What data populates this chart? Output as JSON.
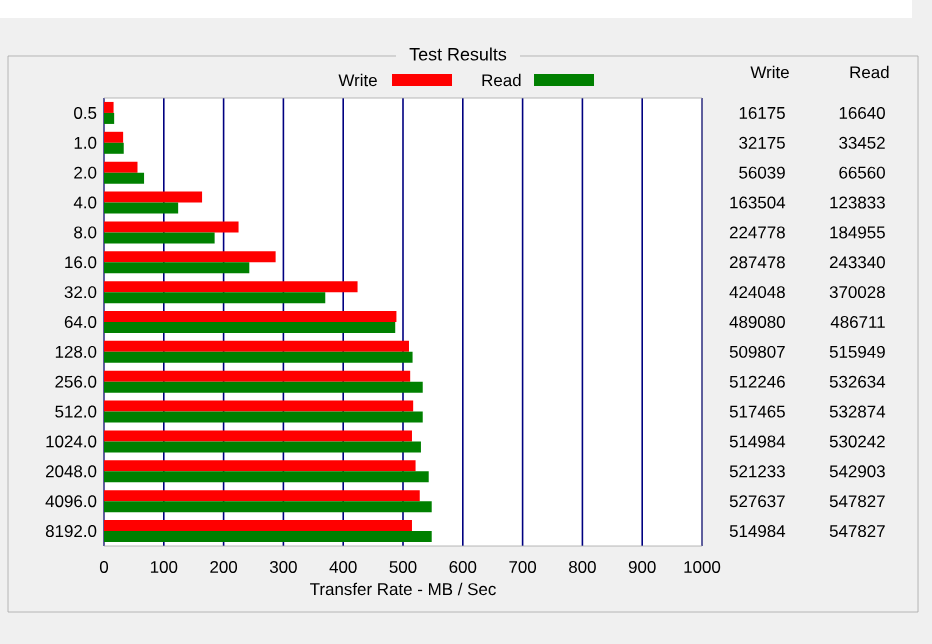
{
  "chart_data": {
    "type": "bar",
    "orientation": "horizontal",
    "title": "Test Results",
    "xlabel": "Transfer Rate - MB / Sec",
    "categories": [
      "0.5",
      "1.0",
      "2.0",
      "4.0",
      "8.0",
      "16.0",
      "32.0",
      "64.0",
      "128.0",
      "256.0",
      "512.0",
      "1024.0",
      "2048.0",
      "4096.0",
      "8192.0"
    ],
    "series": [
      {
        "name": "Write",
        "color": "#ff0000",
        "values": [
          16,
          32,
          56,
          164,
          225,
          287,
          424,
          489,
          510,
          512,
          517,
          515,
          521,
          528,
          515
        ]
      },
      {
        "name": "Read",
        "color": "#008000",
        "values": [
          17,
          33,
          67,
          124,
          185,
          243,
          370,
          487,
          516,
          533,
          533,
          530,
          543,
          548,
          548
        ]
      }
    ],
    "annotations": [
      "Write",
      "Read",
      "16175",
      "16640",
      "32175",
      "33452",
      "56039",
      "66560",
      "163504",
      "123833",
      "224778",
      "184955",
      "287478",
      "243340",
      "424048",
      "370028",
      "489080",
      "486711",
      "509807",
      "515949",
      "512246",
      "532634",
      "517465",
      "532874",
      "514984",
      "530242",
      "521233",
      "542903",
      "527637",
      "547827",
      "514984",
      "547827"
    ],
    "xlim": [
      0,
      1000
    ],
    "xticks": [
      0,
      100,
      200,
      300,
      400,
      500,
      600,
      700,
      800,
      900,
      1000
    ],
    "grid": "x",
    "legend": "top"
  }
}
